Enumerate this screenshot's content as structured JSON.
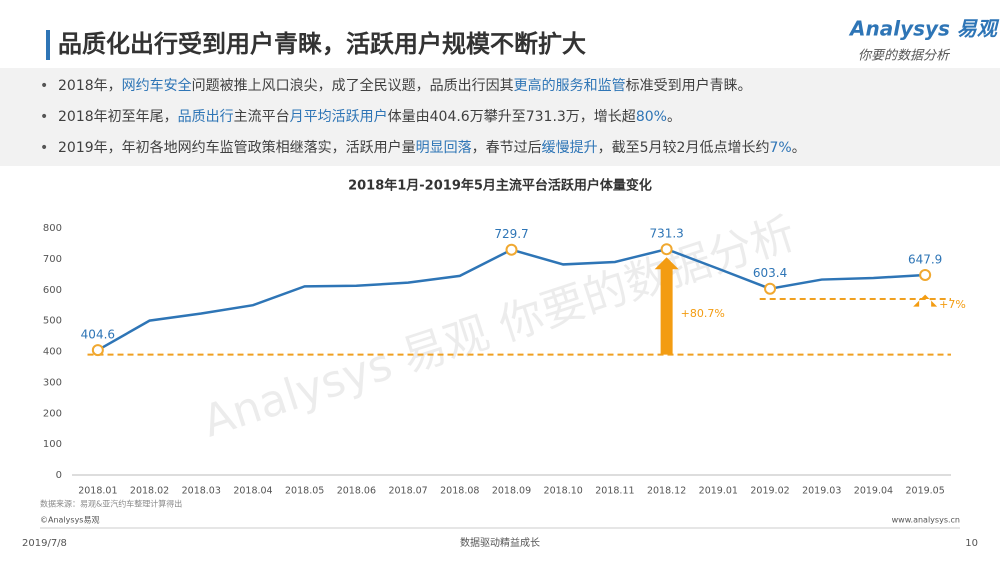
{
  "header": {
    "title": "品质化出行受到用户青睐，活跃用户规模不断扩大",
    "logo": "Analysys 易观",
    "slogan": "你要的数据分析"
  },
  "bullets": [
    [
      {
        "text": "2018年，"
      },
      {
        "text": "网约车安全",
        "em": true
      },
      {
        "text": "问题被推上风口浪尖，成了全民议题，品质出行因其"
      },
      {
        "text": "更高的服务和监管",
        "em": true
      },
      {
        "text": "标准受到用户青睐。"
      }
    ],
    [
      {
        "text": "2018年初至年尾，"
      },
      {
        "text": "品质出行",
        "em": true
      },
      {
        "text": "主流平台"
      },
      {
        "text": "月平均活跃用户",
        "em": true
      },
      {
        "text": "体量由404.6万攀升至731.3万，增长超"
      },
      {
        "text": "80%",
        "em": true
      },
      {
        "text": "。"
      }
    ],
    [
      {
        "text": "2019年，年初各地网约车监管政策相继落实，活跃用户量"
      },
      {
        "text": "明显回落",
        "em": true
      },
      {
        "text": "，春节过后"
      },
      {
        "text": "缓慢提升",
        "em": true
      },
      {
        "text": "，截至5月较2月低点增长约"
      },
      {
        "text": "7%",
        "em": true
      },
      {
        "text": "。"
      }
    ]
  ],
  "chart_data": {
    "type": "line",
    "title": "2018年1月-2019年5月主流平台活跃用户体量变化",
    "categories": [
      "2018.01",
      "2018.02",
      "2018.03",
      "2018.04",
      "2018.05",
      "2018.06",
      "2018.07",
      "2018.08",
      "2018.09",
      "2018.10",
      "2018.11",
      "2018.12",
      "2019.01",
      "2019.02",
      "2019.03",
      "2019.04",
      "2019.05"
    ],
    "values": [
      404.6,
      500,
      523,
      550,
      611,
      613,
      623,
      645,
      729.7,
      682,
      690,
      731.3,
      668,
      603.4,
      633,
      638,
      647.9
    ],
    "value_labels": [
      "404.6",
      null,
      null,
      null,
      null,
      null,
      null,
      null,
      "729.7",
      null,
      null,
      "731.3",
      null,
      "603.4",
      null,
      null,
      "647.9"
    ],
    "color": "#2e75b6",
    "marker_color": "#f0a830",
    "ylim": [
      0,
      800
    ],
    "yticks": [
      0,
      100,
      200,
      300,
      400,
      500,
      600,
      700,
      800
    ],
    "reference_lines": [
      {
        "value": 390,
        "start": "2018.01",
        "color": "#f0a020"
      },
      {
        "value": 570,
        "start": "2019.02",
        "color": "#f0a020"
      }
    ],
    "annotations": [
      {
        "text": "+80.7%",
        "category": "2018.12",
        "from": 390,
        "to": 731.3,
        "color": "#f39c12"
      },
      {
        "text": "+7%",
        "category": "2019.05",
        "from": 570,
        "to": 610,
        "color": "#f39c12"
      }
    ],
    "source": "数据来源：易观&亚汽约车整理计算得出"
  },
  "watermark": "Analysys 易观 你要的数据分析",
  "footer": {
    "copyright": "©Analysys易观",
    "url": "www.analysys.cn",
    "date": "2019/7/8",
    "slogan": "数据驱动精益成长",
    "page": "10"
  }
}
